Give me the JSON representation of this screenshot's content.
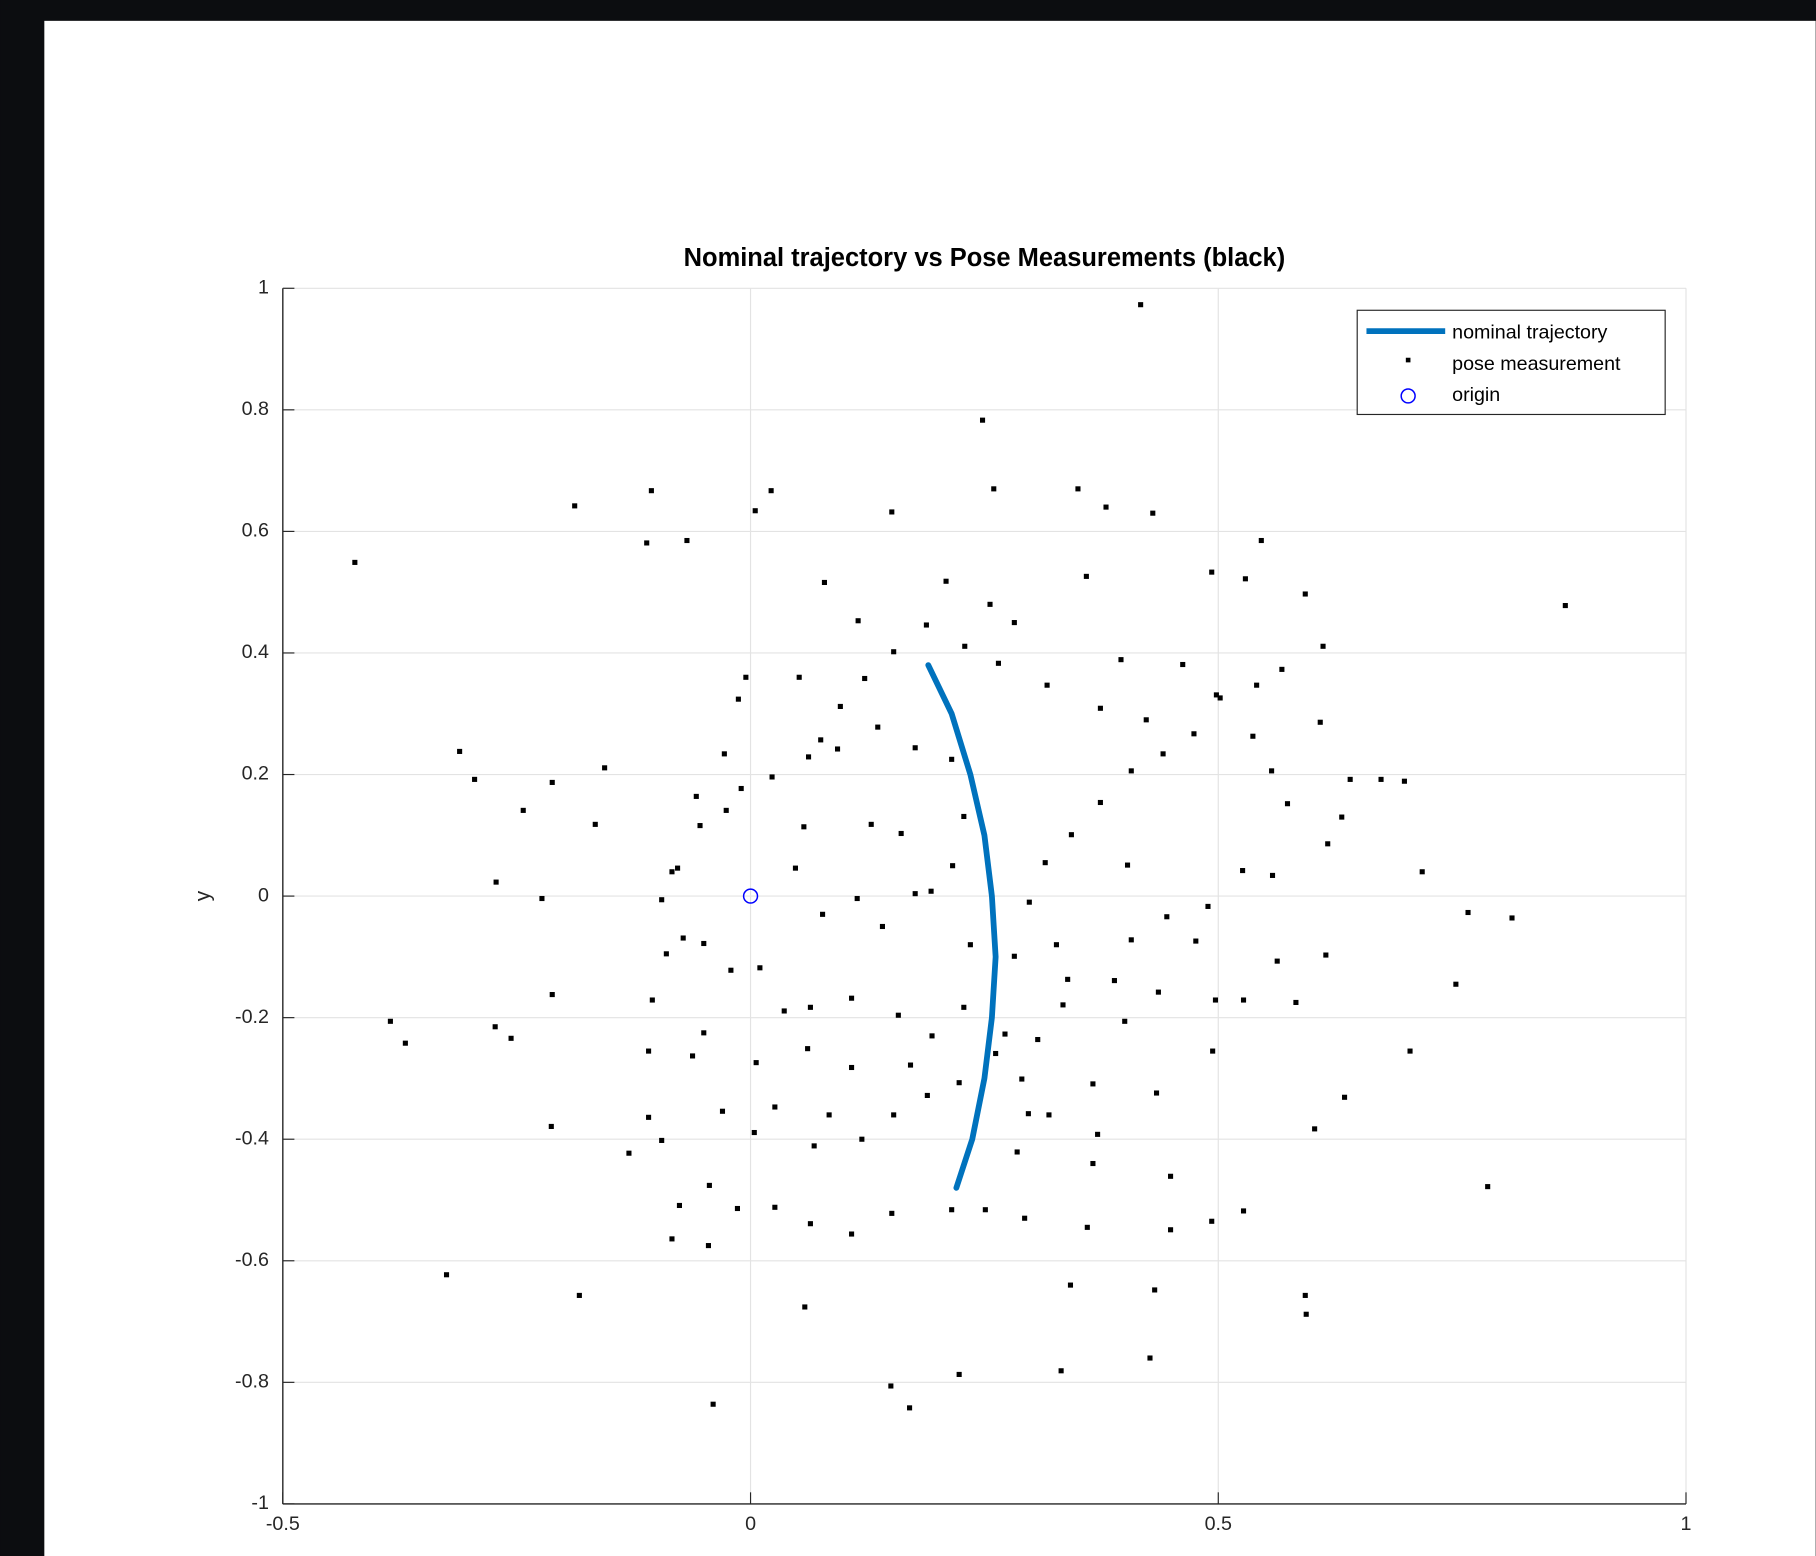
{
  "chart_data": {
    "type": "scatter",
    "title": "Nominal trajectory vs Pose Measurements (black)",
    "y_label": "y",
    "xlim": [
      -0.5,
      1
    ],
    "ylim": [
      -1,
      1
    ],
    "xticks": [
      -0.5,
      0,
      0.5,
      1
    ],
    "yticks": [
      -1,
      -0.8,
      -0.6,
      -0.4,
      -0.2,
      0,
      0.2,
      0.4,
      0.6,
      0.8,
      1
    ],
    "grid": true,
    "legend": "top-right",
    "series": [
      {
        "name": "nominal trajectory",
        "marker": "line",
        "color": "#0072bd",
        "x": [
          0.19,
          0.215,
          0.235,
          0.25,
          0.258,
          0.262,
          0.258,
          0.25,
          0.237,
          0.22
        ],
        "y": [
          0.38,
          0.3,
          0.2,
          0.1,
          0,
          -0.1,
          -0.2,
          -0.3,
          -0.4,
          -0.48
        ]
      },
      {
        "name": "pose measurement",
        "marker": "dot",
        "color": "#000000",
        "x": [
          -0.423,
          0.417,
          0.248,
          0.871,
          0.814,
          0.788,
          -0.04,
          0.17,
          0.332,
          -0.325,
          -0.183,
          -0.385,
          -0.369,
          -0.311,
          -0.188,
          -0.106,
          0.022,
          0.35,
          0.546,
          0.593,
          0.612,
          0.641,
          0.674,
          0.699,
          0.718,
          0.767,
          0.754,
          0.705,
          0.635,
          0.603,
          0.593,
          0.594,
          0.427,
          0.432,
          0.342,
          0.223,
          0.15,
          0.058,
          -0.045,
          -0.084,
          -0.13,
          -0.213,
          -0.212,
          -0.256,
          -0.273,
          -0.272,
          -0.223,
          -0.243,
          -0.295,
          -0.166,
          -0.156,
          -0.212,
          -0.111,
          -0.068,
          0.005,
          0.151,
          0.26,
          0.38,
          0.43,
          0.529,
          0.493,
          0.075,
          0.115,
          0.079,
          0.209,
          0.256,
          0.282,
          0.359,
          0.396,
          0.462,
          0.502,
          0.537,
          0.557,
          0.574,
          0.558,
          0.526,
          0.489,
          0.476,
          0.436,
          0.4,
          0.366,
          0.319,
          0.285,
          0.366,
          0.449,
          0.527,
          0.493,
          0.449,
          0.36,
          0.293,
          0.251,
          0.215,
          0.151,
          0.108,
          0.064,
          0.026,
          -0.014,
          -0.076,
          -0.095,
          -0.03,
          0.026,
          0.084,
          0.153,
          0.189,
          0.223,
          0.307,
          0.339,
          0.327,
          0.298,
          0.315,
          0.343,
          0.374,
          0.407,
          0.441,
          0.474,
          0.403,
          0.445,
          0.407,
          0.389,
          0.334,
          0.272,
          0.29,
          0.194,
          0.158,
          0.108,
          0.064,
          0.036,
          0.01,
          -0.021,
          -0.05,
          -0.072,
          -0.09,
          -0.078,
          -0.054,
          -0.026,
          -0.01,
          0.023,
          0.062,
          0.093,
          0.136,
          0.176,
          0.215,
          0.228,
          0.216,
          0.176,
          0.141,
          0.114,
          0.077,
          0.048,
          0.057,
          0.129,
          0.161,
          0.193,
          0.235,
          0.282,
          0.228,
          0.262,
          0.297,
          0.371,
          0.434,
          0.494,
          0.527,
          0.497,
          0.563,
          0.583,
          0.615,
          0.617,
          0.632,
          0.609,
          0.568,
          0.541,
          0.498,
          0.423,
          0.374,
          0.317,
          0.265,
          0.229,
          0.188,
          0.153,
          0.122,
          0.096,
          0.052,
          -0.005,
          -0.013,
          -0.028,
          -0.058,
          -0.084,
          -0.095,
          -0.105,
          -0.109,
          -0.062,
          -0.05,
          0.006,
          0.061,
          0.108,
          0.171,
          0.119,
          0.068,
          0.004,
          -0.044,
          -0.109
        ],
        "y": [
          0.549,
          0.973,
          0.783,
          0.478,
          -0.036,
          -0.478,
          -0.836,
          -0.842,
          -0.781,
          -0.623,
          -0.657,
          -0.206,
          -0.242,
          0.238,
          0.642,
          0.667,
          0.667,
          0.67,
          0.585,
          0.497,
          0.411,
          0.192,
          0.192,
          0.189,
          0.04,
          -0.027,
          -0.145,
          -0.255,
          -0.331,
          -0.383,
          -0.657,
          -0.688,
          -0.76,
          -0.648,
          -0.64,
          -0.787,
          -0.806,
          -0.676,
          -0.575,
          -0.564,
          -0.423,
          -0.379,
          -0.162,
          -0.234,
          -0.215,
          0.023,
          -0.004,
          0.141,
          0.192,
          0.118,
          0.211,
          0.187,
          0.581,
          0.585,
          0.634,
          0.632,
          0.67,
          0.64,
          0.63,
          0.522,
          0.533,
          0.257,
          0.453,
          0.516,
          0.518,
          0.48,
          0.45,
          0.526,
          0.389,
          0.381,
          0.326,
          0.263,
          0.206,
          0.152,
          0.034,
          0.042,
          -0.017,
          -0.074,
          -0.158,
          -0.206,
          -0.309,
          -0.36,
          -0.421,
          -0.44,
          -0.461,
          -0.518,
          -0.535,
          -0.549,
          -0.545,
          -0.53,
          -0.516,
          -0.516,
          -0.522,
          -0.556,
          -0.539,
          -0.512,
          -0.514,
          -0.509,
          -0.402,
          -0.354,
          -0.347,
          -0.36,
          -0.36,
          -0.328,
          -0.307,
          -0.236,
          -0.137,
          -0.08,
          -0.01,
          0.055,
          0.101,
          0.154,
          0.206,
          0.234,
          0.267,
          0.051,
          -0.034,
          -0.072,
          -0.139,
          -0.179,
          -0.227,
          -0.301,
          -0.23,
          -0.196,
          -0.168,
          -0.183,
          -0.189,
          -0.118,
          -0.122,
          -0.078,
          -0.069,
          -0.095,
          0.046,
          0.116,
          0.141,
          0.177,
          0.196,
          0.229,
          0.242,
          0.278,
          0.244,
          0.225,
          0.131,
          0.05,
          0.004,
          -0.05,
          -0.004,
          -0.03,
          0.046,
          0.114,
          0.118,
          0.103,
          0.008,
          -0.08,
          -0.099,
          -0.183,
          -0.259,
          -0.358,
          -0.392,
          -0.324,
          -0.255,
          -0.171,
          -0.171,
          -0.107,
          -0.175,
          -0.097,
          0.086,
          0.13,
          0.286,
          0.373,
          0.347,
          0.331,
          0.29,
          0.309,
          0.347,
          0.383,
          0.411,
          0.446,
          0.402,
          0.358,
          0.312,
          0.36,
          0.36,
          0.324,
          0.234,
          0.164,
          0.04,
          -0.006,
          -0.171,
          -0.255,
          -0.263,
          -0.225,
          -0.274,
          -0.251,
          -0.282,
          -0.278,
          -0.4,
          -0.411,
          -0.389,
          -0.476,
          -0.364
        ]
      },
      {
        "name": "origin",
        "marker": "circle",
        "color": "#0000ff",
        "x": [
          0
        ],
        "y": [
          0
        ]
      }
    ]
  }
}
